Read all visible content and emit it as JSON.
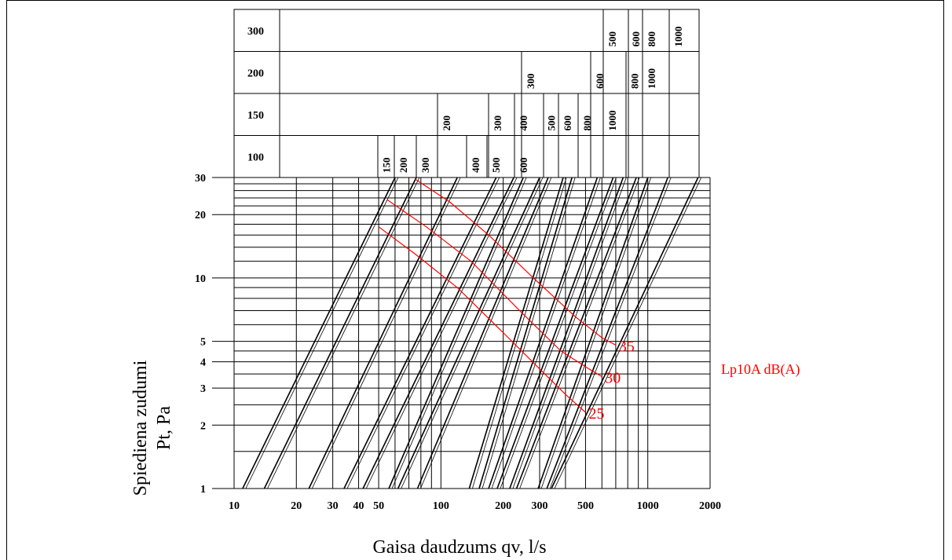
{
  "chart_data": {
    "type": "line",
    "x_scale": "log",
    "y_scale": "log",
    "xlim": [
      10,
      2000
    ],
    "ylim": [
      1,
      30
    ],
    "grid": true,
    "xlabel": "Gaisa daudzums qv, l/s",
    "ylabel_line1": "Spiediena zudumi",
    "ylabel_line2": "Pt, Pa",
    "x_ticks": [
      10,
      20,
      30,
      40,
      50,
      100,
      200,
      300,
      500,
      1000,
      2000
    ],
    "y_ticks": [
      1,
      2,
      3,
      4,
      5,
      10,
      20,
      30
    ],
    "x_tick_labels": [
      "10",
      "20",
      "30",
      "40",
      "50",
      "100",
      "200",
      "300",
      "500",
      "1000",
      "2000"
    ],
    "y_tick_labels": [
      "1",
      "2",
      "3",
      "4",
      "5",
      "10",
      "20",
      "30"
    ],
    "black_lines_x_at_p1": [
      11,
      14,
      23,
      34,
      42,
      56,
      62,
      77,
      137,
      153,
      170,
      187,
      215,
      232,
      295,
      325,
      342
    ],
    "black_lines_x_at_p30": [
      60,
      76,
      120,
      185,
      225,
      250,
      300,
      330,
      390,
      430,
      570,
      680,
      760,
      880,
      1000,
      1250,
      1750
    ],
    "size_table": {
      "rows": [
        {
          "size": "300",
          "values": [
            "500",
            "600",
            "800",
            "1000"
          ]
        },
        {
          "size": "200",
          "values": [
            "300",
            "600",
            "800",
            "1000"
          ]
        },
        {
          "size": "150",
          "values": [
            "200",
            "300",
            "400",
            "500",
            "600",
            "800",
            "1000"
          ]
        },
        {
          "size": "100",
          "values": [
            "150",
            "200",
            "300",
            "400",
            "500",
            "600"
          ]
        }
      ]
    },
    "sound_curves": {
      "legend": "Lp10A dB(A)",
      "color": "#ff0000",
      "series": [
        {
          "name": "25",
          "points": [
            [
              50,
              17.5
            ],
            [
              75,
              13
            ],
            [
              120,
              9
            ],
            [
              200,
              5.5
            ],
            [
              300,
              3.7
            ],
            [
              400,
              2.8
            ],
            [
              500,
              2.3
            ]
          ]
        },
        {
          "name": "30",
          "points": [
            [
              55,
              23.5
            ],
            [
              85,
              17.5
            ],
            [
              140,
              12
            ],
            [
              240,
              7
            ],
            [
              380,
              4.5
            ],
            [
              520,
              3.7
            ],
            [
              600,
              3.4
            ]
          ]
        },
        {
          "name": "35",
          "points": [
            [
              75,
              29.5
            ],
            [
              110,
              23
            ],
            [
              170,
              16
            ],
            [
              280,
              10
            ],
            [
              450,
              6.5
            ],
            [
              600,
              5.2
            ],
            [
              700,
              4.8
            ]
          ]
        }
      ]
    }
  }
}
